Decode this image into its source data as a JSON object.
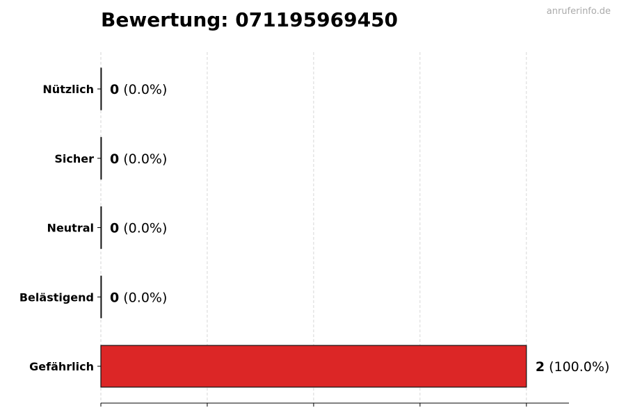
{
  "chart_data": {
    "type": "bar",
    "orientation": "horizontal",
    "title": "Bewertung: 071195969450",
    "watermark": "anruferinfo.de",
    "categories": [
      "Nützlich",
      "Sicher",
      "Neutral",
      "Belästigend",
      "Gefährlich"
    ],
    "values": [
      0,
      0,
      0,
      0,
      2
    ],
    "labels": [
      {
        "count": "0",
        "percent": "(0.0%)"
      },
      {
        "count": "0",
        "percent": "(0.0%)"
      },
      {
        "count": "0",
        "percent": "(0.0%)"
      },
      {
        "count": "0",
        "percent": "(0.0%)"
      },
      {
        "count": "2",
        "percent": "(100.0%)"
      }
    ],
    "colors": [
      "#2e8b57",
      "#4caf50",
      "#9e9e9e",
      "#ff9800",
      "#dc2626"
    ],
    "xlim": [
      0,
      2.2
    ],
    "xticks": [
      0,
      0.5,
      1,
      1.5,
      2
    ],
    "xtick_labels_shown": false,
    "grid": "vertical dashed",
    "xlabel": "",
    "ylabel": ""
  }
}
